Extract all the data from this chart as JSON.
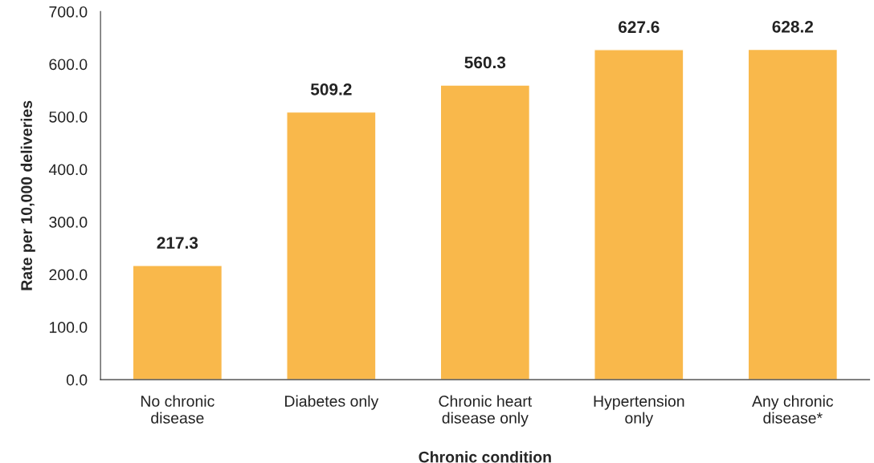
{
  "chart_data": {
    "type": "bar",
    "categories": [
      "No chronic\ndisease",
      "Diabetes only",
      "Chronic heart\ndisease only",
      "Hypertension\nonly",
      "Any chronic\ndisease*"
    ],
    "values": [
      217.3,
      509.2,
      560.3,
      627.6,
      628.2
    ],
    "color": "#f9b84b",
    "xlabel": "Chronic condition",
    "ylabel": "Rate per 10,000 deliveries",
    "ylim": [
      0,
      700
    ],
    "yticks": [
      {
        "value": 0,
        "label": "0.0"
      },
      {
        "value": 100,
        "label": "100.0"
      },
      {
        "value": 200,
        "label": "200.0"
      },
      {
        "value": 300,
        "label": "300.0"
      },
      {
        "value": 400,
        "label": "400.0"
      },
      {
        "value": 500,
        "label": "500.0"
      },
      {
        "value": 600,
        "label": "600.0"
      },
      {
        "value": 700,
        "label": "700.0"
      }
    ],
    "data_labels": true,
    "grid": false,
    "legend": false
  }
}
